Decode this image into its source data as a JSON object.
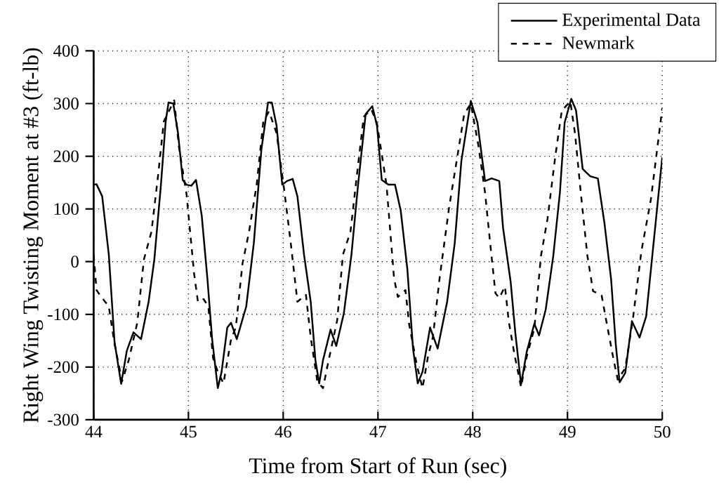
{
  "chart_data": {
    "type": "line",
    "xlabel": "Time from Start of Run (sec)",
    "ylabel": "Right Wing Twisting Moment at #3 (ft-lb)",
    "xlim": [
      44,
      50
    ],
    "ylim": [
      -300,
      400
    ],
    "xticks": [
      44,
      45,
      46,
      47,
      48,
      49,
      50
    ],
    "yticks": [
      -300,
      -200,
      -100,
      0,
      100,
      200,
      300,
      400
    ],
    "grid": true,
    "legend": "top right",
    "series": [
      {
        "name": "Experimental Data",
        "color": "#000000",
        "line_style": "solid",
        "x": [
          44.0,
          44.03,
          44.09,
          44.16,
          44.22,
          44.29,
          44.35,
          44.42,
          44.5,
          44.58,
          44.64,
          44.71,
          44.76,
          44.79,
          44.84,
          44.89,
          44.94,
          44.98,
          45.03,
          45.08,
          45.14,
          45.2,
          45.25,
          45.31,
          45.35,
          45.41,
          45.45,
          45.51,
          45.61,
          45.69,
          45.77,
          45.84,
          45.88,
          45.93,
          45.99,
          46.04,
          46.1,
          46.15,
          46.22,
          46.29,
          46.34,
          46.38,
          46.42,
          46.5,
          46.56,
          46.64,
          46.72,
          46.79,
          46.87,
          46.94,
          46.99,
          47.04,
          47.11,
          47.18,
          47.24,
          47.31,
          47.37,
          47.42,
          47.47,
          47.55,
          47.63,
          47.73,
          47.81,
          47.88,
          47.98,
          48.05,
          48.13,
          48.2,
          48.28,
          48.32,
          48.4,
          48.45,
          48.51,
          48.57,
          48.65,
          48.7,
          48.77,
          48.85,
          48.92,
          48.97,
          49.04,
          49.09,
          49.16,
          49.24,
          49.32,
          49.39,
          49.46,
          49.51,
          49.55,
          49.61,
          49.68,
          49.76,
          49.83,
          49.9,
          50.0
        ],
        "values": [
          146,
          147,
          124,
          13,
          -152,
          -232,
          -169,
          -134,
          -147,
          -76,
          4,
          146,
          266,
          302,
          300,
          244,
          155,
          146,
          144,
          155,
          88,
          -32,
          -147,
          -240,
          -209,
          -125,
          -116,
          -147,
          -85,
          35,
          213,
          302,
          302,
          258,
          146,
          153,
          157,
          124,
          13,
          -76,
          -187,
          -231,
          -187,
          -129,
          -160,
          -98,
          13,
          146,
          280,
          295,
          258,
          155,
          146,
          146,
          97,
          -14,
          -165,
          -231,
          -209,
          -125,
          -165,
          -76,
          35,
          191,
          305,
          264,
          153,
          158,
          153,
          64,
          -38,
          -136,
          -233,
          -171,
          -118,
          -140,
          -91,
          11,
          131,
          264,
          309,
          287,
          176,
          162,
          158,
          73,
          -33,
          -158,
          -229,
          -211,
          -113,
          -144,
          -104,
          20,
          198
        ]
      },
      {
        "name": "Newmark",
        "color": "#000000",
        "line_style": "dashed",
        "x": [
          44.0,
          44.03,
          44.08,
          44.16,
          44.22,
          44.3,
          44.37,
          44.46,
          44.53,
          44.61,
          44.68,
          44.74,
          44.79,
          44.85,
          44.9,
          44.98,
          45.06,
          45.1,
          45.16,
          45.21,
          45.26,
          45.31,
          45.37,
          45.45,
          45.5,
          45.57,
          45.64,
          45.72,
          45.79,
          45.85,
          45.93,
          46.01,
          46.08,
          46.15,
          46.24,
          46.29,
          46.36,
          46.42,
          46.48,
          46.57,
          46.63,
          46.71,
          46.78,
          46.85,
          46.93,
          46.99,
          47.09,
          47.17,
          47.21,
          47.29,
          47.33,
          47.41,
          47.47,
          47.53,
          47.58,
          47.65,
          47.75,
          47.83,
          47.91,
          47.98,
          48.06,
          48.13,
          48.18,
          48.24,
          48.28,
          48.34,
          48.38,
          48.44,
          48.51,
          48.57,
          48.65,
          48.72,
          48.79,
          48.87,
          48.94,
          49.03,
          49.08,
          49.14,
          49.21,
          49.27,
          49.36,
          49.41,
          49.48,
          49.53,
          49.61,
          49.69,
          49.78,
          49.88,
          50.0
        ],
        "values": [
          13,
          -54,
          -67,
          -85,
          -156,
          -227,
          -187,
          -116,
          4,
          57,
          164,
          266,
          284,
          306,
          217,
          128,
          -23,
          -76,
          -71,
          -85,
          -183,
          -209,
          -231,
          -147,
          -125,
          -4,
          57,
          146,
          266,
          285,
          244,
          137,
          35,
          -76,
          -63,
          -143,
          -227,
          -240,
          -187,
          -111,
          13,
          57,
          168,
          275,
          289,
          262,
          146,
          -32,
          -67,
          -54,
          -120,
          -196,
          -240,
          -178,
          -143,
          -32,
          102,
          191,
          280,
          300,
          220,
          131,
          42,
          -60,
          -69,
          -47,
          -113,
          -176,
          -238,
          -180,
          -127,
          11,
          82,
          198,
          287,
          304,
          242,
          131,
          11,
          -56,
          -64,
          -113,
          -180,
          -224,
          -202,
          -109,
          20,
          118,
          291
        ]
      }
    ]
  }
}
